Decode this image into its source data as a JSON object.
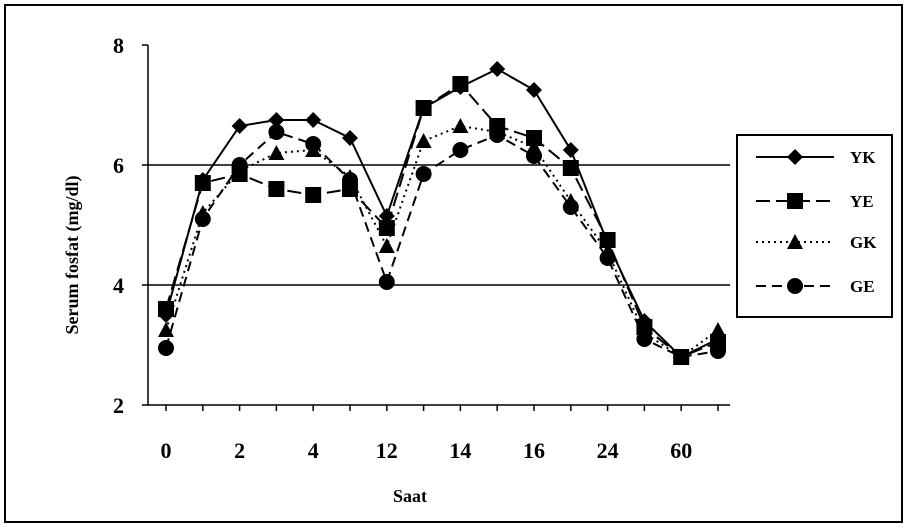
{
  "chart_data": {
    "type": "line",
    "xlabel": "Saat",
    "ylabel": "Serum fosfat (mg/dl)",
    "ylim": [
      2,
      8
    ],
    "yticks": [
      2,
      4,
      6,
      8
    ],
    "gridlines": [
      4,
      6
    ],
    "x_positions": 16,
    "x_tick_labels": [
      "0",
      "2",
      "4",
      "12",
      "14",
      "16",
      "24",
      "60"
    ],
    "legend_position": "right",
    "series": [
      {
        "name": "YK",
        "marker": "diamond",
        "dash": "solid",
        "values": [
          3.5,
          5.75,
          6.65,
          6.75,
          6.75,
          6.45,
          5.15,
          6.95,
          7.3,
          7.6,
          7.25,
          6.25,
          4.7,
          3.4,
          2.8,
          3.1
        ]
      },
      {
        "name": "YE",
        "marker": "square",
        "dash": "longdash",
        "values": [
          3.6,
          5.7,
          5.85,
          5.6,
          5.5,
          5.6,
          4.95,
          6.95,
          7.35,
          6.65,
          6.45,
          5.95,
          4.75,
          3.3,
          2.8,
          3.05
        ]
      },
      {
        "name": "GK",
        "marker": "triangle",
        "dash": "dotted",
        "values": [
          3.25,
          5.2,
          5.9,
          6.2,
          6.25,
          5.8,
          4.65,
          6.4,
          6.65,
          6.55,
          6.3,
          5.4,
          4.55,
          3.2,
          2.8,
          3.25
        ]
      },
      {
        "name": "GE",
        "marker": "circle",
        "dash": "dashed",
        "values": [
          2.95,
          5.1,
          6.0,
          6.55,
          6.35,
          5.75,
          4.05,
          5.85,
          6.25,
          6.5,
          6.15,
          5.3,
          4.45,
          3.1,
          2.8,
          2.9
        ]
      }
    ]
  }
}
